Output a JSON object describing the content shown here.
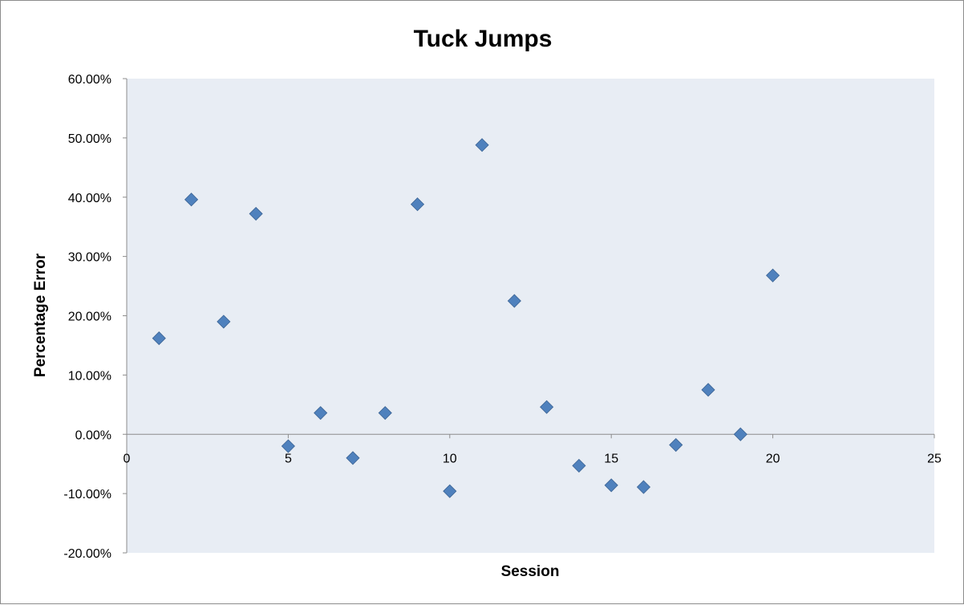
{
  "chart_data": {
    "type": "scatter",
    "title": "Tuck Jumps",
    "xlabel": "Session",
    "ylabel": "Percentage Error",
    "xlim": [
      0,
      25
    ],
    "ylim": [
      -0.2,
      0.6
    ],
    "x_ticks": [
      0,
      5,
      10,
      15,
      20,
      25
    ],
    "y_ticks": [
      -0.2,
      -0.1,
      0.0,
      0.1,
      0.2,
      0.3,
      0.4,
      0.5,
      0.6
    ],
    "x_tick_labels": [
      "0",
      "5",
      "10",
      "15",
      "20",
      "25"
    ],
    "y_tick_labels": [
      "-20.00%",
      "-10.00%",
      "0.00%",
      "10.00%",
      "20.00%",
      "30.00%",
      "40.00%",
      "50.00%",
      "60.00%"
    ],
    "grid": false,
    "marker": "diamond",
    "colors": {
      "marker": "#4f81bd",
      "marker_edge": "#3c6494",
      "plot_bg": "#e8edf4",
      "axis": "#8c8c8c"
    },
    "series": [
      {
        "x": [
          1,
          2,
          3,
          4,
          5,
          6,
          7,
          8,
          9,
          10,
          11,
          12,
          13,
          14,
          15,
          16,
          17,
          18,
          19,
          20
        ],
        "y": [
          0.162,
          0.396,
          0.19,
          0.372,
          -0.02,
          0.036,
          -0.04,
          0.036,
          0.388,
          -0.096,
          0.488,
          0.225,
          0.046,
          -0.053,
          -0.086,
          -0.089,
          -0.018,
          0.075,
          0.0,
          0.268
        ]
      }
    ]
  }
}
